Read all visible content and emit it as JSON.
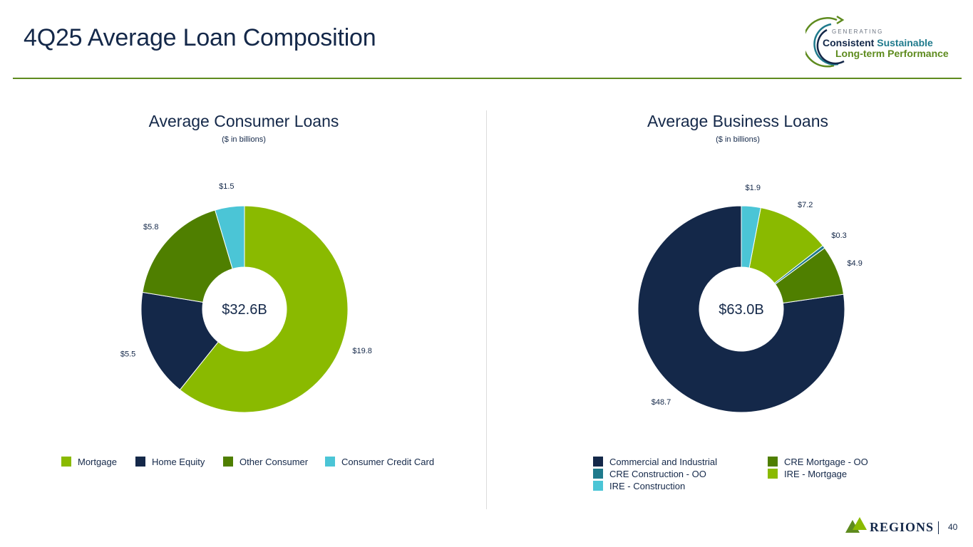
{
  "header": {
    "title": "4Q25 Average Loan Composition",
    "badge": {
      "line1": "GENERATING",
      "word1": "Consistent",
      "word2": "Sustainable",
      "line3": "Long-term Performance"
    }
  },
  "footer": {
    "brand": "REGIONS",
    "page_number": "40"
  },
  "colors": {
    "navy": "#142849",
    "lime": "#8aba00",
    "olive": "#4f7f00",
    "teal": "#1f7a8c",
    "cyan": "#4bc5d6",
    "rule": "#5e8b1e"
  },
  "chart_data": [
    {
      "type": "pie",
      "title": "Average Consumer Loans",
      "subtitle": "($ in billions)",
      "center_label": "$32.6B",
      "legend_position": "bottom",
      "slices": [
        {
          "name": "Mortgage",
          "value": 19.8,
          "label": "$19.8",
          "color": "#8aba00"
        },
        {
          "name": "Home Equity",
          "value": 5.5,
          "label": "$5.5",
          "color": "#142849"
        },
        {
          "name": "Other Consumer",
          "value": 5.8,
          "label": "$5.8",
          "color": "#4f7f00"
        },
        {
          "name": "Consumer Credit Card",
          "value": 1.5,
          "label": "$1.5",
          "color": "#4bc5d6"
        }
      ]
    },
    {
      "type": "pie",
      "title": "Average Business Loans",
      "subtitle": "($ in billions)",
      "center_label": "$63.0B",
      "legend_position": "bottom",
      "slices": [
        {
          "name": "Commercial and Industrial",
          "value": 48.7,
          "label": "$48.7",
          "color": "#142849"
        },
        {
          "name": "CRE Mortgage - OO",
          "value": 4.9,
          "label": "$4.9",
          "color": "#4f7f00"
        },
        {
          "name": "CRE Construction - OO",
          "value": 0.3,
          "label": "$0.3",
          "color": "#1f7a8c"
        },
        {
          "name": "IRE - Mortgage",
          "value": 7.2,
          "label": "$7.2",
          "color": "#8aba00"
        },
        {
          "name": "IRE - Construction",
          "value": 1.9,
          "label": "$1.9",
          "color": "#4bc5d6"
        }
      ]
    }
  ]
}
